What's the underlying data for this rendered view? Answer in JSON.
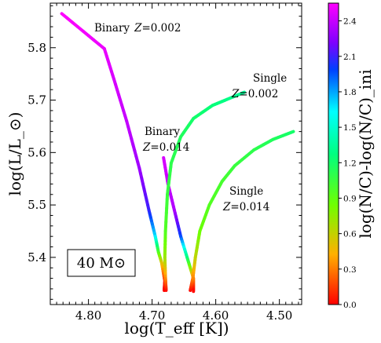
{
  "chart_data": {
    "type": "line",
    "xlabel": "log(T_eff [K])",
    "ylabel": "log(L/L_⊙)",
    "x_reversed": true,
    "xlim": [
      4.86,
      4.465
    ],
    "ylim": [
      5.31,
      5.885
    ],
    "xticks": [
      "4.80",
      "4.70",
      "4.60",
      "4.50"
    ],
    "xtick_values": [
      4.8,
      4.7,
      4.6,
      4.5
    ],
    "yticks": [
      "5.4",
      "5.5",
      "5.6",
      "5.7",
      "5.8"
    ],
    "ytick_values": [
      5.4,
      5.5,
      5.6,
      5.7,
      5.8
    ],
    "colorbar": {
      "label": "log(N/C)-log(N/C)_ini",
      "range": [
        0.0,
        2.55
      ],
      "ticks": [
        "0.0",
        "0.3",
        "0.6",
        "0.9",
        "1.2",
        "1.5",
        "1.8",
        "2.1",
        "2.4"
      ],
      "tick_values": [
        0.0,
        0.3,
        0.6,
        0.9,
        1.2,
        1.5,
        1.8,
        2.1,
        2.4
      ],
      "colormap": "gist_rainbow_r"
    },
    "mass_label": "40 M⊙",
    "series": [
      {
        "name": "Binary Z=0.002",
        "label_line1": "Binary",
        "label_z": "Z",
        "label_value": "=0.002",
        "points": [
          [
            4.842,
            5.865,
            2.55
          ],
          [
            4.775,
            5.798,
            2.5
          ],
          [
            4.76,
            5.74,
            2.45
          ],
          [
            4.74,
            5.66,
            2.4
          ],
          [
            4.72,
            5.57,
            2.3
          ],
          [
            4.705,
            5.49,
            2.1
          ],
          [
            4.695,
            5.44,
            1.7
          ],
          [
            4.69,
            5.41,
            1.0
          ],
          [
            4.685,
            5.39,
            0.55
          ],
          [
            4.68,
            5.355,
            0.1
          ],
          [
            4.681,
            5.337,
            0.0
          ]
        ]
      },
      {
        "name": "Binary Z=0.014",
        "label_line1": "Binary",
        "label_z": "Z",
        "label_value": "=0.014",
        "points": [
          [
            4.682,
            5.59,
            2.45
          ],
          [
            4.675,
            5.54,
            2.4
          ],
          [
            4.665,
            5.49,
            2.35
          ],
          [
            4.655,
            5.44,
            2.0
          ],
          [
            4.645,
            5.4,
            1.3
          ],
          [
            4.64,
            5.38,
            0.8
          ],
          [
            4.635,
            5.36,
            0.35
          ],
          [
            4.635,
            5.335,
            0.0
          ]
        ]
      },
      {
        "name": "Single Z=0.002",
        "label_line1": "Single",
        "label_z": "Z",
        "label_value": "=0.002",
        "points": [
          [
            4.678,
            5.337,
            0.0
          ],
          [
            4.679,
            5.36,
            0.3
          ],
          [
            4.68,
            5.4,
            0.7
          ],
          [
            4.679,
            5.45,
            0.95
          ],
          [
            4.676,
            5.52,
            1.05
          ],
          [
            4.67,
            5.58,
            1.1
          ],
          [
            4.655,
            5.63,
            1.15
          ],
          [
            4.635,
            5.665,
            1.2
          ],
          [
            4.605,
            5.69,
            1.25
          ],
          [
            4.575,
            5.705,
            1.3
          ],
          [
            4.555,
            5.715,
            1.35
          ]
        ]
      },
      {
        "name": "Single Z=0.014",
        "label_line1": "Single",
        "label_z": "Z",
        "label_value": "=0.014",
        "points": [
          [
            4.64,
            5.337,
            0.0
          ],
          [
            4.636,
            5.36,
            0.3
          ],
          [
            4.632,
            5.4,
            0.6
          ],
          [
            4.625,
            5.45,
            0.85
          ],
          [
            4.61,
            5.5,
            0.95
          ],
          [
            4.59,
            5.545,
            1.0
          ],
          [
            4.57,
            5.575,
            1.05
          ],
          [
            4.54,
            5.605,
            1.1
          ],
          [
            4.51,
            5.625,
            1.15
          ],
          [
            4.478,
            5.64,
            1.2
          ]
        ]
      }
    ]
  }
}
